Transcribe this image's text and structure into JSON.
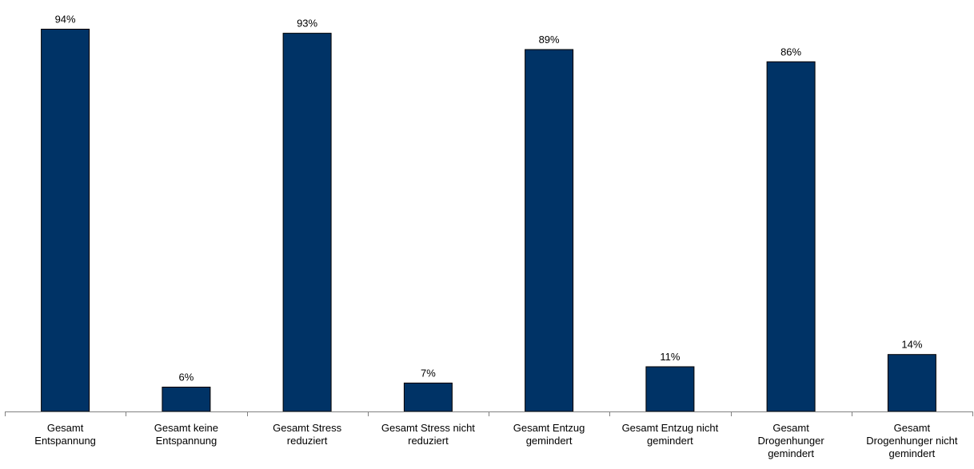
{
  "chart_data": {
    "type": "bar",
    "title": "",
    "xlabel": "",
    "ylabel": "",
    "ylim": [
      0,
      100
    ],
    "grid": false,
    "legend": "none",
    "categories": [
      [
        "Gesamt",
        "Entspannung"
      ],
      [
        "Gesamt keine",
        "Entspannung"
      ],
      [
        "Gesamt Stress",
        "reduziert"
      ],
      [
        "Gesamt Stress nicht",
        "reduziert"
      ],
      [
        "Gesamt Entzug",
        "gemindert"
      ],
      [
        "Gesamt Entzug nicht",
        "gemindert"
      ],
      [
        "Gesamt",
        "Drogenhunger",
        "gemindert"
      ],
      [
        "Gesamt",
        "Drogenhunger nicht",
        "gemindert"
      ]
    ],
    "values": [
      94,
      6,
      93,
      7,
      89,
      11,
      86,
      14
    ],
    "data_labels": [
      "94%",
      "6%",
      "93%",
      "7%",
      "89%",
      "11%",
      "86%",
      "14%"
    ],
    "unit": "%",
    "colors": {
      "bar": "#003366",
      "bar_outline": "#000000",
      "axis": "#808080",
      "text": "#000000"
    }
  }
}
